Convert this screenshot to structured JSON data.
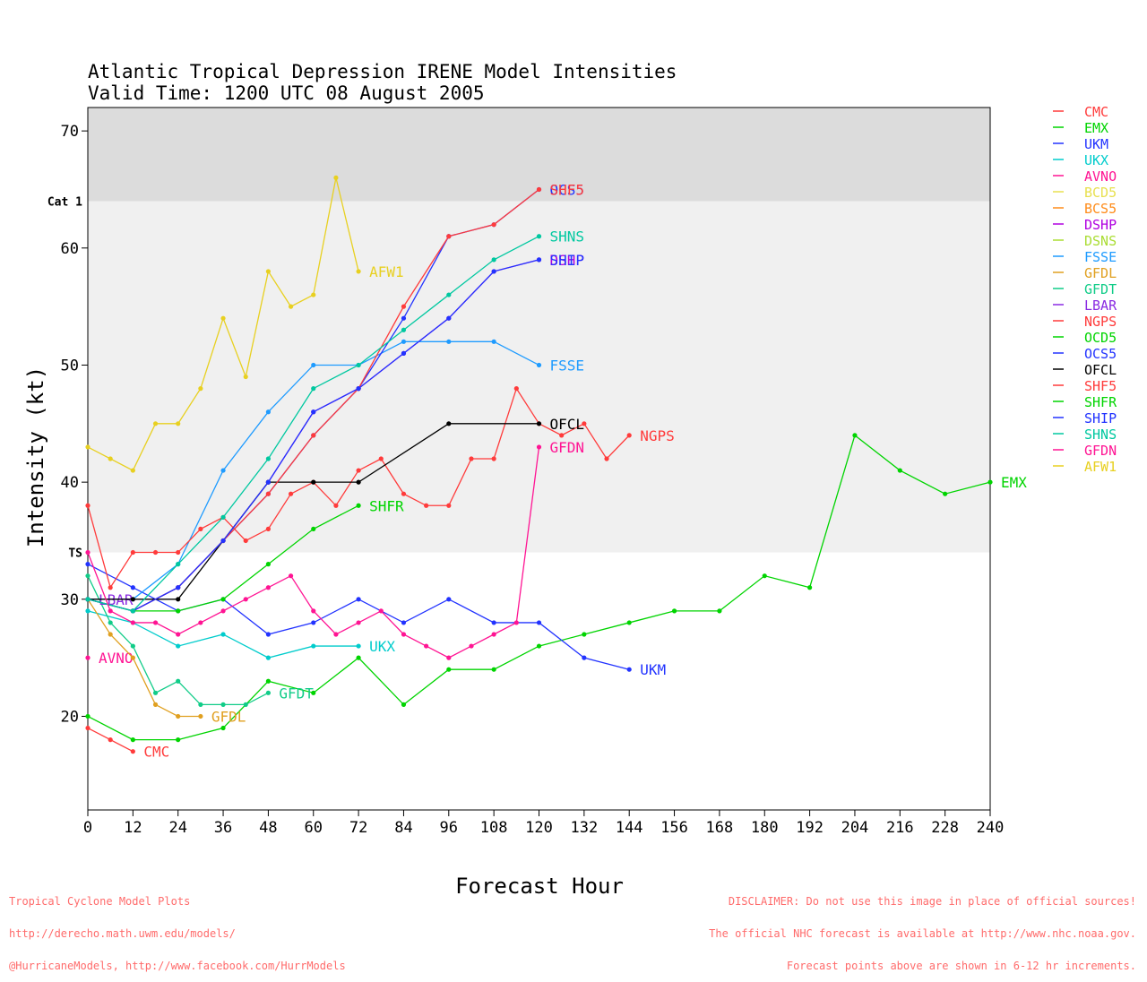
{
  "chart_data": {
    "type": "line",
    "title": "Atlantic Tropical Depression IRENE Model Intensities",
    "subtitle": "Valid Time: 1200 UTC 08 August 2005",
    "xlabel": "Forecast Hour",
    "ylabel": "Intensity (kt)",
    "xlim": [
      0,
      240
    ],
    "ylim": [
      12,
      72
    ],
    "x_ticks": [
      "0",
      "12",
      "24",
      "36",
      "48",
      "60",
      "72",
      "84",
      "96",
      "108",
      "120",
      "132",
      "144",
      "156",
      "168",
      "180",
      "192",
      "204",
      "216",
      "228",
      "240"
    ],
    "y_ticks": [
      "20",
      "30",
      "40",
      "50",
      "60",
      "70"
    ],
    "thresholds": [
      {
        "label": "TS",
        "value": 34
      },
      {
        "label": "Cat 1",
        "value": 64
      }
    ],
    "bands": [
      {
        "from": 34,
        "to": 64,
        "color": "#f0f0f0"
      },
      {
        "from": 64,
        "to": 72,
        "color": "#dcdcdc"
      }
    ],
    "legend_position": "right",
    "series": [
      {
        "name": "CMC",
        "color": "#ff3b3b",
        "label": "CMC",
        "x": [
          0,
          6,
          12
        ],
        "y": [
          19,
          18,
          17
        ]
      },
      {
        "name": "EMX",
        "color": "#00d400",
        "label": "EMX",
        "x": [
          0,
          12,
          24,
          36,
          48,
          60,
          72,
          84,
          96,
          108,
          120,
          132,
          144,
          156,
          168,
          180,
          192,
          204,
          216,
          228,
          240
        ],
        "y": [
          20,
          18,
          18,
          19,
          23,
          22,
          25,
          21,
          24,
          24,
          26,
          27,
          28,
          29,
          29,
          32,
          31,
          44,
          41,
          39,
          40
        ]
      },
      {
        "name": "UKM",
        "color": "#2233ff",
        "label": "UKM",
        "x": [
          0,
          12,
          24,
          36,
          48,
          60,
          72,
          84,
          96,
          108,
          120,
          132,
          144
        ],
        "y": [
          33,
          31,
          29,
          30,
          27,
          28,
          30,
          28,
          30,
          28,
          28,
          25,
          24
        ]
      },
      {
        "name": "UKX",
        "color": "#00cccc",
        "label": "UKX",
        "x": [
          0,
          12,
          24,
          36,
          48,
          60,
          72
        ],
        "y": [
          29,
          28,
          26,
          27,
          25,
          26,
          26
        ]
      },
      {
        "name": "AVNO",
        "color": "#ff1493",
        "label": "AVNO",
        "x": [
          0
        ],
        "y": [
          25
        ]
      },
      {
        "name": "BCD5",
        "color": "#e8e050",
        "label": "",
        "x": [],
        "y": []
      },
      {
        "name": "BCS5",
        "color": "#ff8c1a",
        "label": "",
        "x": [],
        "y": []
      },
      {
        "name": "DSHP",
        "color": "#b000e0",
        "label": "DSHP",
        "x": [
          0,
          12,
          24,
          36,
          48,
          60,
          72,
          84,
          96,
          108,
          120
        ],
        "y": [
          30,
          29,
          31,
          35,
          40,
          46,
          48,
          51,
          54,
          58,
          59
        ]
      },
      {
        "name": "DSNS",
        "color": "#aadd33",
        "label": "",
        "x": [],
        "y": []
      },
      {
        "name": "FSSE",
        "color": "#1e9bff",
        "label": "FSSE",
        "x": [
          0,
          12,
          24,
          36,
          48,
          60,
          72,
          84,
          96,
          108,
          120
        ],
        "y": [
          30,
          30,
          33,
          41,
          46,
          50,
          50,
          52,
          52,
          52,
          50
        ]
      },
      {
        "name": "GFDL",
        "color": "#e0a020",
        "label": "GFDL",
        "x": [
          0,
          6,
          12,
          18,
          24,
          30
        ],
        "y": [
          30,
          27,
          25,
          21,
          20,
          20
        ]
      },
      {
        "name": "GFDT",
        "color": "#11cc88",
        "label": "GFDT",
        "x": [
          0,
          6,
          12,
          18,
          24,
          30,
          36,
          42,
          48
        ],
        "y": [
          32,
          28,
          26,
          22,
          23,
          21,
          21,
          21,
          22
        ]
      },
      {
        "name": "LBAR",
        "color": "#8a2be2",
        "label": "LBAR",
        "x": [
          0
        ],
        "y": [
          30
        ]
      },
      {
        "name": "NGPS",
        "color": "#ff3b3b",
        "label": "NGPS",
        "x": [
          0,
          6,
          12,
          18,
          24,
          30,
          36,
          42,
          48,
          54,
          60,
          66,
          72,
          78,
          84,
          90,
          96,
          102,
          108,
          114,
          120,
          126,
          132,
          138,
          144
        ],
        "y": [
          38,
          31,
          34,
          34,
          34,
          36,
          37,
          35,
          36,
          39,
          40,
          38,
          41,
          42,
          39,
          38,
          38,
          42,
          42,
          48,
          45,
          44,
          45,
          42,
          44
        ]
      },
      {
        "name": "OCD5",
        "color": "#00d400",
        "label": "",
        "x": [],
        "y": []
      },
      {
        "name": "OCS5",
        "color": "#2233ff",
        "label": "OCS5",
        "x": [
          0,
          12,
          24,
          36,
          48,
          60,
          72,
          84,
          96,
          108,
          120
        ],
        "y": [
          30,
          29,
          31,
          35,
          39,
          44,
          48,
          54,
          61,
          62,
          65
        ]
      },
      {
        "name": "OFCL",
        "color": "#000000",
        "label": "OFCL",
        "x": [
          0,
          12,
          24,
          36,
          48,
          60,
          72,
          96,
          120
        ],
        "y": [
          30,
          30,
          30,
          35,
          40,
          40,
          40,
          45,
          45
        ]
      },
      {
        "name": "SHF5",
        "color": "#ff3b3b",
        "label": "SHF5",
        "x": [
          0,
          12,
          24,
          36,
          48,
          60,
          72,
          84,
          96,
          108,
          120
        ],
        "y": [
          30,
          29,
          31,
          35,
          39,
          44,
          48,
          55,
          61,
          62,
          65
        ]
      },
      {
        "name": "SHFR",
        "color": "#00d400",
        "label": "SHFR",
        "x": [
          0,
          12,
          24,
          36,
          48,
          60,
          72
        ],
        "y": [
          30,
          29,
          29,
          30,
          33,
          36,
          38
        ]
      },
      {
        "name": "SHIP",
        "color": "#2233ff",
        "label": "SHIP",
        "x": [
          0,
          12,
          24,
          36,
          48,
          60,
          72,
          84,
          96,
          108,
          120
        ],
        "y": [
          30,
          29,
          31,
          35,
          40,
          46,
          48,
          51,
          54,
          58,
          59
        ]
      },
      {
        "name": "SHNS",
        "color": "#00c8a0",
        "label": "SHNS",
        "x": [
          0,
          12,
          24,
          36,
          48,
          60,
          72,
          84,
          96,
          108,
          120
        ],
        "y": [
          30,
          29,
          33,
          37,
          42,
          48,
          50,
          53,
          56,
          59,
          61
        ]
      },
      {
        "name": "GFDN",
        "color": "#ff1493",
        "label": "GFDN",
        "x": [
          0,
          6,
          12,
          18,
          24,
          30,
          36,
          42,
          48,
          54,
          60,
          66,
          72,
          78,
          84,
          90,
          96,
          102,
          108,
          114,
          120
        ],
        "y": [
          34,
          29,
          28,
          28,
          27,
          28,
          29,
          30,
          31,
          32,
          29,
          27,
          28,
          29,
          27,
          26,
          25,
          26,
          27,
          28,
          43
        ]
      },
      {
        "name": "AFW1",
        "color": "#e8d020",
        "label": "AFW1",
        "x": [
          0,
          6,
          12,
          18,
          24,
          30,
          36,
          42,
          48,
          54,
          60,
          66,
          72
        ],
        "y": [
          43,
          42,
          41,
          45,
          45,
          48,
          54,
          49,
          58,
          55,
          56,
          66,
          58
        ]
      }
    ]
  },
  "footer": {
    "left": [
      "Tropical Cyclone Model Plots",
      "http://derecho.math.uwm.edu/models/",
      "@HurricaneModels, http://www.facebook.com/HurrModels"
    ],
    "right": [
      "DISCLAIMER: Do not use this image in place of official sources!",
      "The official NHC forecast is available at http://www.nhc.noaa.gov.",
      "Forecast points above are shown in 6-12 hr increments."
    ]
  }
}
